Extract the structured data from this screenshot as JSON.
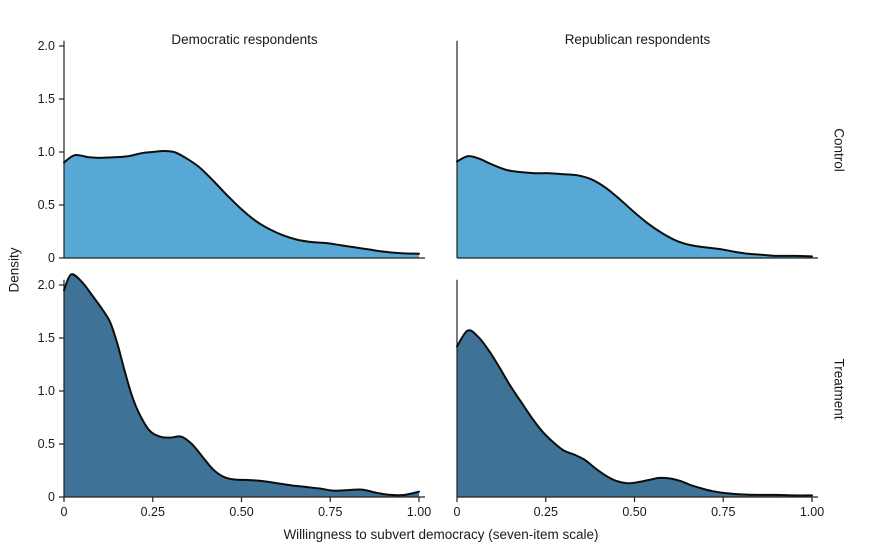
{
  "figure": {
    "xlabel": "Willingness to subvert democracy (seven-item scale)",
    "ylabel": "Density",
    "col_labels": [
      "Democratic respondents",
      "Republican respondents"
    ],
    "row_labels": [
      "Control",
      "Treatment"
    ],
    "x_tick_labels": [
      "0",
      "0.25",
      "0.50",
      "0.75",
      "1.00"
    ],
    "x_tick_values": [
      0,
      0.25,
      0.5,
      0.75,
      1.0
    ],
    "y_tick_labels": [
      "0",
      "0.5",
      "1.0",
      "1.5",
      "2.0"
    ],
    "y_tick_values": [
      0,
      0.5,
      1.0,
      1.5,
      2.0
    ],
    "xlim": [
      0,
      1
    ],
    "ylim": [
      0,
      2.05
    ],
    "grid": false,
    "legend": "none",
    "colors": {
      "control_fill": "#58a8d6",
      "treatment_fill": "#3e7296",
      "line": "#0d0d0d",
      "axis": "#222222",
      "text": "#1a1a1a"
    }
  },
  "chart_data": [
    {
      "type": "area",
      "name": "control-democratic",
      "row": "Control",
      "column": "Democratic respondents",
      "x": [
        0,
        0.03,
        0.07,
        0.1,
        0.14,
        0.18,
        0.22,
        0.25,
        0.28,
        0.31,
        0.34,
        0.38,
        0.42,
        0.46,
        0.5,
        0.54,
        0.58,
        0.62,
        0.66,
        0.7,
        0.74,
        0.78,
        0.82,
        0.86,
        0.9,
        0.95,
        1.0
      ],
      "y": [
        0.9,
        0.97,
        0.95,
        0.945,
        0.95,
        0.96,
        0.99,
        1.0,
        1.01,
        1.0,
        0.95,
        0.86,
        0.73,
        0.59,
        0.46,
        0.35,
        0.27,
        0.21,
        0.17,
        0.15,
        0.14,
        0.12,
        0.1,
        0.08,
        0.06,
        0.045,
        0.04
      ]
    },
    {
      "type": "area",
      "name": "control-republican",
      "row": "Control",
      "column": "Republican respondents",
      "x": [
        0,
        0.03,
        0.06,
        0.1,
        0.14,
        0.18,
        0.22,
        0.26,
        0.3,
        0.34,
        0.38,
        0.42,
        0.46,
        0.5,
        0.54,
        0.58,
        0.62,
        0.66,
        0.7,
        0.74,
        0.78,
        0.82,
        0.86,
        0.9,
        0.95,
        1.0
      ],
      "y": [
        0.91,
        0.96,
        0.94,
        0.88,
        0.83,
        0.81,
        0.8,
        0.8,
        0.79,
        0.78,
        0.74,
        0.66,
        0.55,
        0.43,
        0.32,
        0.23,
        0.16,
        0.12,
        0.1,
        0.085,
        0.06,
        0.04,
        0.03,
        0.02,
        0.02,
        0.015
      ]
    },
    {
      "type": "area",
      "name": "treatment-democratic",
      "row": "Treatment",
      "column": "Democratic respondents",
      "x": [
        0,
        0.02,
        0.05,
        0.08,
        0.11,
        0.13,
        0.15,
        0.17,
        0.19,
        0.21,
        0.24,
        0.27,
        0.3,
        0.33,
        0.36,
        0.39,
        0.42,
        0.45,
        0.48,
        0.52,
        0.56,
        0.6,
        0.64,
        0.68,
        0.72,
        0.76,
        0.8,
        0.84,
        0.88,
        0.92,
        0.96,
        1.0
      ],
      "y": [
        1.95,
        2.1,
        2.03,
        1.9,
        1.76,
        1.65,
        1.45,
        1.2,
        0.97,
        0.8,
        0.63,
        0.57,
        0.56,
        0.57,
        0.5,
        0.38,
        0.26,
        0.19,
        0.165,
        0.16,
        0.15,
        0.13,
        0.11,
        0.095,
        0.08,
        0.06,
        0.065,
        0.07,
        0.04,
        0.02,
        0.02,
        0.05
      ]
    },
    {
      "type": "area",
      "name": "treatment-republican",
      "row": "Treatment",
      "column": "Republican respondents",
      "x": [
        0,
        0.03,
        0.06,
        0.09,
        0.12,
        0.15,
        0.18,
        0.21,
        0.24,
        0.27,
        0.3,
        0.33,
        0.36,
        0.39,
        0.42,
        0.45,
        0.48,
        0.51,
        0.54,
        0.57,
        0.6,
        0.63,
        0.66,
        0.69,
        0.72,
        0.76,
        0.8,
        0.85,
        0.9,
        0.95,
        1.0
      ],
      "y": [
        1.42,
        1.57,
        1.51,
        1.38,
        1.22,
        1.05,
        0.9,
        0.75,
        0.62,
        0.52,
        0.44,
        0.4,
        0.35,
        0.27,
        0.2,
        0.15,
        0.13,
        0.14,
        0.16,
        0.18,
        0.175,
        0.15,
        0.11,
        0.08,
        0.055,
        0.035,
        0.025,
        0.02,
        0.02,
        0.015,
        0.015
      ]
    }
  ]
}
